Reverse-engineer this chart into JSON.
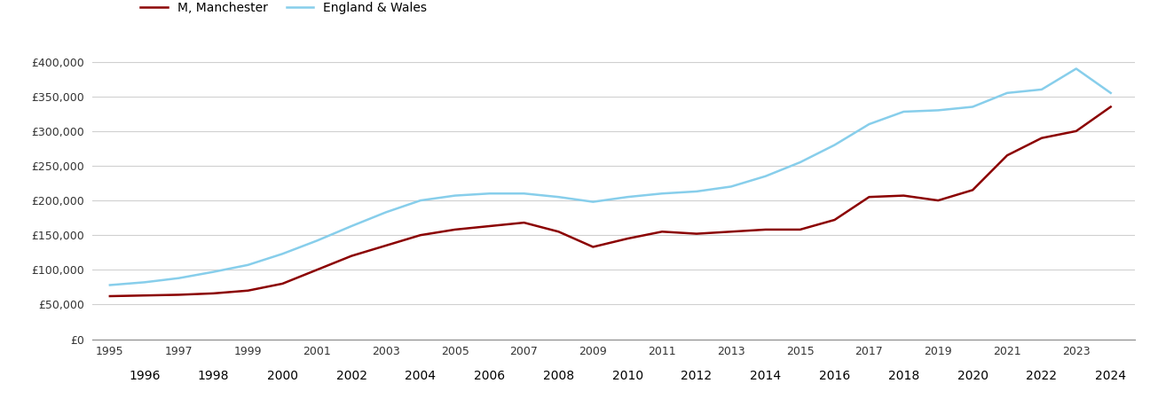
{
  "years": [
    1995,
    1996,
    1997,
    1998,
    1999,
    2000,
    2001,
    2002,
    2003,
    2004,
    2005,
    2006,
    2007,
    2008,
    2009,
    2010,
    2011,
    2012,
    2013,
    2014,
    2015,
    2016,
    2017,
    2018,
    2019,
    2020,
    2021,
    2022,
    2023,
    2024
  ],
  "manchester": [
    62000,
    63000,
    64000,
    66000,
    70000,
    80000,
    100000,
    120000,
    135000,
    150000,
    158000,
    163000,
    168000,
    155000,
    133000,
    145000,
    155000,
    152000,
    155000,
    158000,
    158000,
    172000,
    205000,
    207000,
    200000,
    215000,
    265000,
    290000,
    300000,
    335000
  ],
  "england_wales": [
    78000,
    82000,
    88000,
    97000,
    107000,
    123000,
    142000,
    163000,
    183000,
    200000,
    207000,
    210000,
    210000,
    205000,
    198000,
    205000,
    210000,
    213000,
    220000,
    235000,
    255000,
    280000,
    310000,
    328000,
    330000,
    335000,
    355000,
    360000,
    390000,
    355000
  ],
  "manchester_color": "#8B0000",
  "england_wales_color": "#87CEEB",
  "manchester_label": "M, Manchester",
  "england_wales_label": "England & Wales",
  "ylim": [
    0,
    420000
  ],
  "yticks": [
    0,
    50000,
    100000,
    150000,
    200000,
    250000,
    300000,
    350000,
    400000
  ],
  "background_color": "#ffffff",
  "grid_color": "#d0d0d0",
  "line_width": 1.8,
  "odd_years": [
    1995,
    1997,
    1999,
    2001,
    2003,
    2005,
    2007,
    2009,
    2011,
    2013,
    2015,
    2017,
    2019,
    2021,
    2023
  ],
  "even_years": [
    1996,
    1998,
    2000,
    2002,
    2004,
    2006,
    2008,
    2010,
    2012,
    2014,
    2016,
    2018,
    2020,
    2022,
    2024
  ]
}
